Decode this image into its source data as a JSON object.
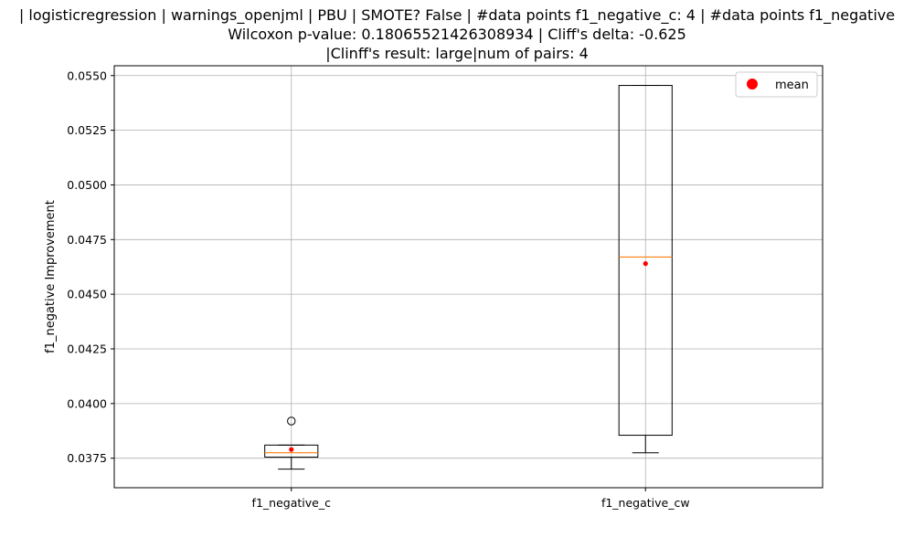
{
  "chart_data": {
    "type": "box",
    "title_lines": [
      "| logisticregression | warnings_openjml | PBU | SMOTE? False | #data points f1_negative_c: 4 | #data points f1_negative",
      "Wilcoxon p-value: 0.18065521426308934 | Cliff's delta: -0.625",
      "|Clinff's result: large|num of pairs: 4"
    ],
    "ylabel": "f1_negative Improvement",
    "ylim": [
      0.03615,
      0.05545
    ],
    "yticks": [
      0.0375,
      0.04,
      0.0425,
      0.045,
      0.0475,
      0.05,
      0.0525,
      0.055
    ],
    "ytick_labels": [
      "0.0375",
      "0.0400",
      "0.0425",
      "0.0450",
      "0.0475",
      "0.0500",
      "0.0525",
      "0.0550"
    ],
    "grid": true,
    "legend": {
      "position": "top-right",
      "entries": [
        {
          "label": "mean",
          "color": "#ff0000"
        }
      ]
    },
    "colors": {
      "box": "#000000",
      "median": "#ff7f0e",
      "mean": "#ff0000",
      "grid": "#b0b0b0"
    },
    "categories": [
      "f1_negative_c",
      "f1_negative_cw"
    ],
    "boxes": [
      {
        "category": "f1_negative_c",
        "whisker_low": 0.037,
        "q1": 0.03755,
        "median": 0.03775,
        "q3": 0.0381,
        "whisker_high": 0.0381,
        "mean": 0.0379,
        "outliers": [
          0.0392
        ]
      },
      {
        "category": "f1_negative_cw",
        "whisker_low": 0.03775,
        "q1": 0.03855,
        "median": 0.0467,
        "q3": 0.05455,
        "whisker_high": 0.05455,
        "mean": 0.0464,
        "outliers": []
      }
    ]
  }
}
